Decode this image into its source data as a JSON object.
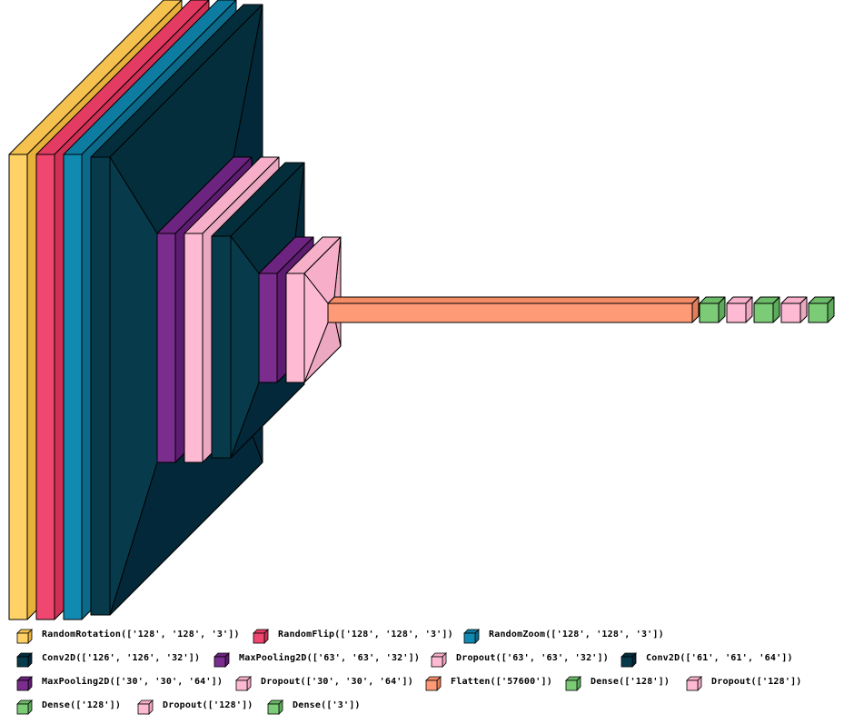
{
  "layer_types": {
    "RandomRotation": {
      "front": "#FFD166",
      "top": "#F5C24F",
      "side": "#E6B03B"
    },
    "RandomFlip": {
      "front": "#EF476F",
      "top": "#E43B63",
      "side": "#D03054"
    },
    "RandomZoom": {
      "front": "#118AB2",
      "top": "#0E7CA1",
      "side": "#0B6A8A"
    },
    "Conv2D": {
      "front": "#073B4C",
      "top": "#052E3D",
      "side": "#03283A"
    },
    "MaxPooling2D": {
      "front": "#7B2D8E",
      "top": "#6D2480",
      "side": "#5E1C70"
    },
    "Dropout": {
      "front": "#FFBAD3",
      "top": "#F7AFC9",
      "side": "#ECA7C1"
    },
    "Flatten": {
      "front": "#FF9A76",
      "top": "#F48C68",
      "side": "#E27E5B"
    },
    "Dense": {
      "front": "#7BCB77",
      "top": "#6CBB69",
      "side": "#5DAA5A"
    }
  },
  "legend": [
    [
      {
        "type": "RandomRotation",
        "label": "RandomRotation(['128', '128', '3'])"
      },
      {
        "type": "RandomFlip",
        "label": "RandomFlip(['128', '128', '3'])"
      },
      {
        "type": "RandomZoom",
        "label": "RandomZoom(['128', '128', '3'])"
      }
    ],
    [
      {
        "type": "Conv2D",
        "label": "Conv2D(['126', '126', '32'])"
      },
      {
        "type": "MaxPooling2D",
        "label": "MaxPooling2D(['63', '63', '32'])"
      },
      {
        "type": "Dropout",
        "label": "Dropout(['63', '63', '32'])"
      },
      {
        "type": "Conv2D",
        "label": "Conv2D(['61', '61', '64'])"
      }
    ],
    [
      {
        "type": "MaxPooling2D",
        "label": "MaxPooling2D(['30', '30', '64'])"
      },
      {
        "type": "Dropout",
        "label": "Dropout(['30', '30', '64'])"
      },
      {
        "type": "Flatten",
        "label": "Flatten(['57600'])"
      },
      {
        "type": "Dense",
        "label": "Dense(['128'])"
      },
      {
        "type": "Dropout",
        "label": "Dropout(['128'])"
      }
    ],
    [
      {
        "type": "Dense",
        "label": "Dense(['128'])"
      },
      {
        "type": "Dropout",
        "label": "Dropout(['128'])"
      },
      {
        "type": "Dense",
        "label": "Dense(['3'])"
      }
    ]
  ],
  "layers": [
    {
      "type": "RandomRotation"
    },
    {
      "type": "RandomFlip"
    },
    {
      "type": "RandomZoom"
    },
    {
      "type": "Conv2D"
    },
    {
      "type": "MaxPooling2D"
    },
    {
      "type": "Dropout"
    },
    {
      "type": "Conv2D"
    },
    {
      "type": "MaxPooling2D"
    },
    {
      "type": "Dropout"
    },
    {
      "type": "Flatten"
    },
    {
      "type": "Dense"
    },
    {
      "type": "Dropout"
    },
    {
      "type": "Dense"
    },
    {
      "type": "Dropout"
    },
    {
      "type": "Dense"
    }
  ]
}
